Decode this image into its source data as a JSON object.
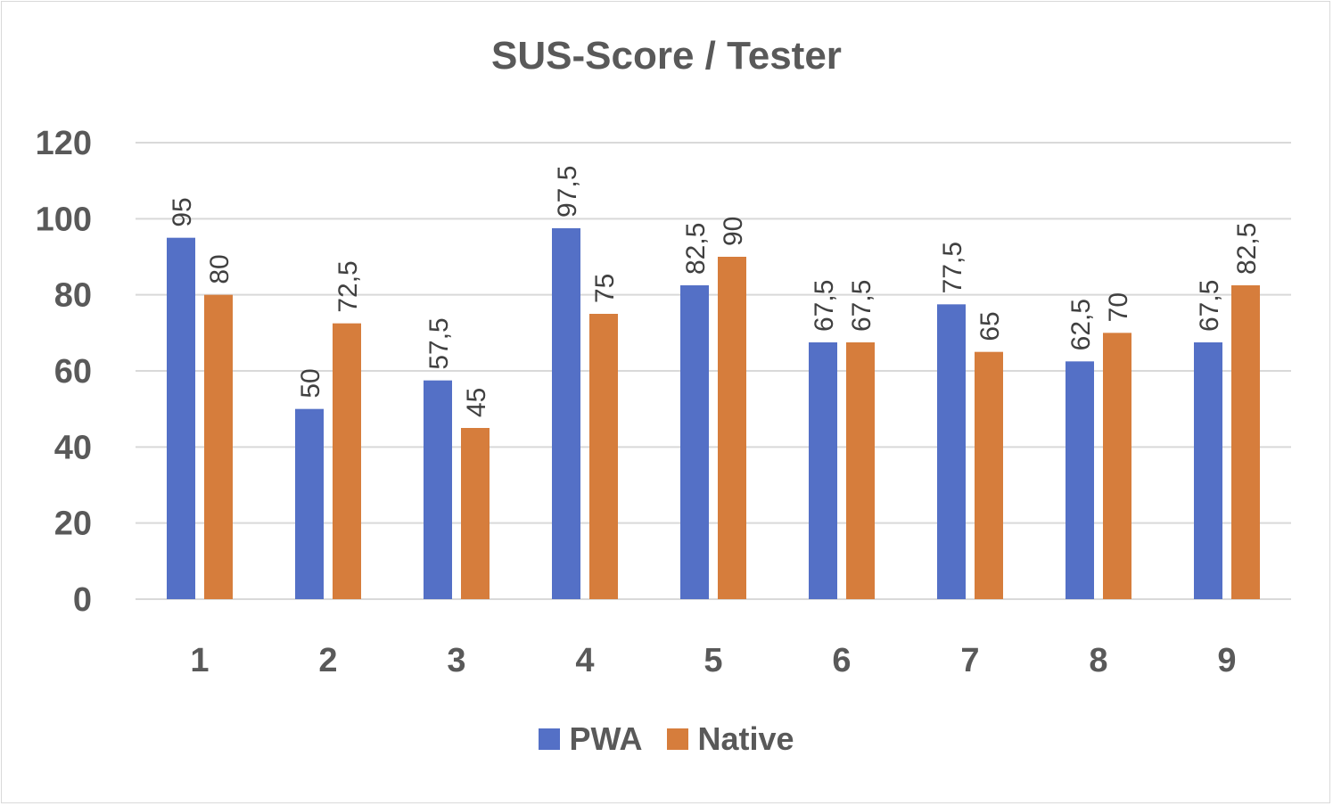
{
  "chart_data": {
    "type": "bar",
    "title": "SUS-Score / Tester",
    "categories": [
      "1",
      "2",
      "3",
      "4",
      "5",
      "6",
      "7",
      "8",
      "9"
    ],
    "series": [
      {
        "name": "PWA",
        "color": "#5470c6",
        "values": [
          95,
          50,
          57.5,
          97.5,
          82.5,
          67.5,
          77.5,
          62.5,
          67.5
        ],
        "labels": [
          "95",
          "50",
          "57,5",
          "97,5",
          "82,5",
          "67,5",
          "77,5",
          "62,5",
          "67,5"
        ]
      },
      {
        "name": "Native",
        "color": "#d67d3c",
        "values": [
          80,
          72.5,
          45,
          75,
          90,
          67.5,
          65,
          70,
          82.5
        ],
        "labels": [
          "80",
          "72,5",
          "45",
          "75",
          "90",
          "67,5",
          "65",
          "70",
          "82,5"
        ]
      }
    ],
    "ylim": [
      0,
      120
    ],
    "yticks": [
      "0",
      "20",
      "40",
      "60",
      "80",
      "100",
      "120"
    ],
    "grid": true,
    "legend_position": "bottom",
    "data_labels": "rotated"
  }
}
